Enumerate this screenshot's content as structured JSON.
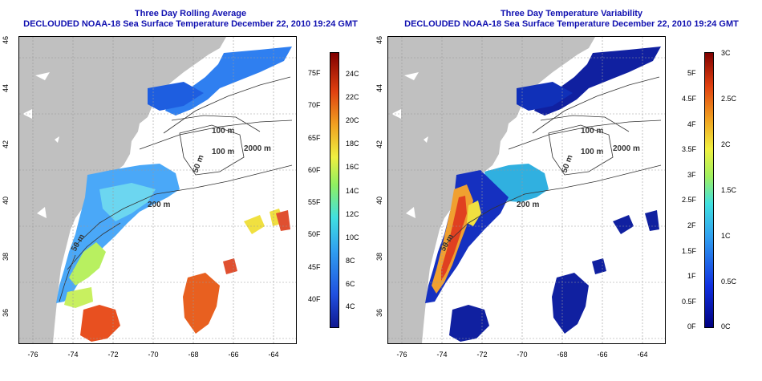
{
  "left": {
    "title_line1": "Three Day Rolling Average",
    "title_line2": "DECLOUDED NOAA-18 Sea Surface Temperature December 22, 2010 19:24 GMT",
    "colorbar": {
      "fahrenheit": [
        "75F",
        "70F",
        "65F",
        "60F",
        "55F",
        "50F",
        "45F",
        "40F"
      ],
      "celsius": [
        "24C",
        "22C",
        "20C",
        "18C",
        "16C",
        "14C",
        "12C",
        "10C",
        "8C",
        "6C",
        "4C"
      ]
    },
    "contours": [
      "100 m",
      "2000 m",
      "100 m",
      "50 m",
      "200 m",
      "50 m"
    ]
  },
  "right": {
    "title_line1": "Three Day Temperature Variability",
    "title_line2": "DECLOUDED NOAA-18 Sea Surface Temperature December 22, 2010 19:24 GMT",
    "colorbar": {
      "fahrenheit": [
        "5F",
        "4.5F",
        "4F",
        "3.5F",
        "3F",
        "2.5F",
        "2F",
        "1.5F",
        "1F",
        "0.5F",
        "0F"
      ],
      "celsius": [
        "3C",
        "2.5C",
        "2C",
        "1.5C",
        "1C",
        "0.5C",
        "0C"
      ]
    },
    "contours": [
      "100 m",
      "2000 m",
      "100 m",
      "50 m",
      "200 m",
      "50 m"
    ]
  },
  "axes": {
    "lat_ticks": [
      "36",
      "38",
      "40",
      "42",
      "44",
      "46"
    ],
    "lon_ticks": [
      "-76",
      "-74",
      "-72",
      "-70",
      "-68",
      "-66",
      "-64"
    ]
  },
  "colors": {
    "title": "#1010b0",
    "land": "#c0c0c0",
    "ocean_nodata": "#ffffff"
  }
}
